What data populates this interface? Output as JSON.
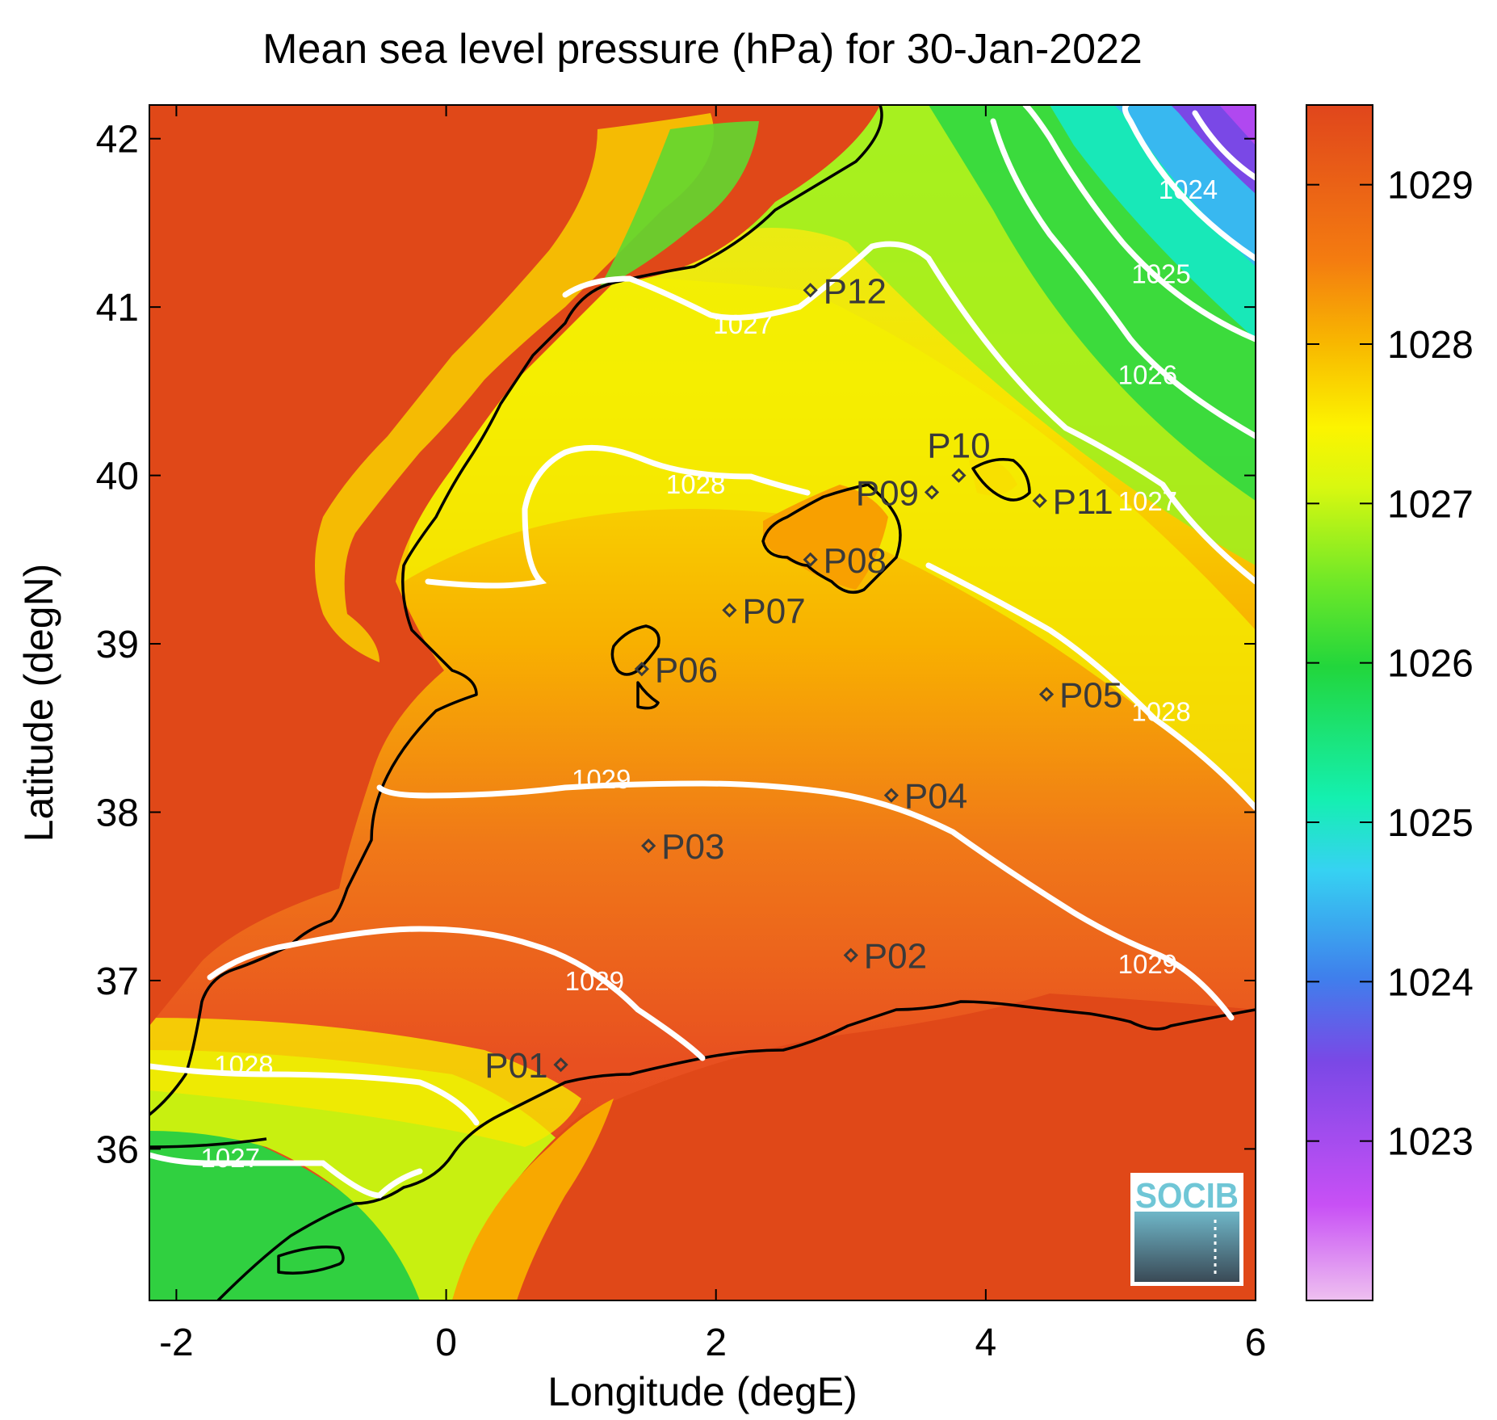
{
  "title": "Mean sea level pressure (hPa) for 30-Jan-2022",
  "xlabel": "Longitude (degE)",
  "ylabel": "Latitude (degN)",
  "x_range": [
    -2.2,
    6.0
  ],
  "y_range": [
    35.1,
    42.2
  ],
  "x_ticks": [
    -2,
    0,
    2,
    4,
    6
  ],
  "y_ticks": [
    36,
    37,
    38,
    39,
    40,
    41,
    42
  ],
  "colorbar": {
    "range": [
      1022.0,
      1029.5
    ],
    "ticks": [
      1023,
      1024,
      1025,
      1026,
      1027,
      1028,
      1029
    ],
    "colormap": [
      "#e8b4e8",
      "#c040f0",
      "#7040e0",
      "#3a78e8",
      "#30d8f0",
      "#10f0b0",
      "#20d040",
      "#80f020",
      "#f8f800",
      "#f8a800",
      "#f06010",
      "#e04818"
    ]
  },
  "contour_labels": [
    {
      "text": "1024",
      "lon": 5.5,
      "lat": 41.7
    },
    {
      "text": "1025",
      "lon": 5.3,
      "lat": 41.2
    },
    {
      "text": "1026",
      "lon": 5.2,
      "lat": 40.6
    },
    {
      "text": "1027",
      "lon": 5.2,
      "lat": 39.85
    },
    {
      "text": "1027",
      "lon": 2.2,
      "lat": 40.9
    },
    {
      "text": "1028",
      "lon": 1.85,
      "lat": 39.95
    },
    {
      "text": "1028",
      "lon": 5.3,
      "lat": 38.6
    },
    {
      "text": "1029",
      "lon": 1.15,
      "lat": 38.2
    },
    {
      "text": "1029",
      "lon": 5.2,
      "lat": 37.1
    },
    {
      "text": "1029",
      "lon": 1.1,
      "lat": 37.0
    },
    {
      "text": "1028",
      "lon": -1.5,
      "lat": 36.5
    },
    {
      "text": "1027",
      "lon": -1.6,
      "lat": 35.95
    }
  ],
  "stations": [
    {
      "name": "P01",
      "lon": 0.85,
      "lat": 36.5,
      "label_side": "left"
    },
    {
      "name": "P02",
      "lon": 3.0,
      "lat": 37.15,
      "label_side": "right"
    },
    {
      "name": "P03",
      "lon": 1.5,
      "lat": 37.8,
      "label_side": "right"
    },
    {
      "name": "P04",
      "lon": 3.3,
      "lat": 38.1,
      "label_side": "right"
    },
    {
      "name": "P05",
      "lon": 4.45,
      "lat": 38.7,
      "label_side": "right"
    },
    {
      "name": "P06",
      "lon": 1.45,
      "lat": 38.85,
      "label_side": "right"
    },
    {
      "name": "P07",
      "lon": 2.1,
      "lat": 39.2,
      "label_side": "right"
    },
    {
      "name": "P08",
      "lon": 2.7,
      "lat": 39.5,
      "label_side": "right"
    },
    {
      "name": "P09",
      "lon": 3.6,
      "lat": 39.9,
      "label_side": "left"
    },
    {
      "name": "P10",
      "lon": 3.8,
      "lat": 40.0,
      "label_side": "above"
    },
    {
      "name": "P11",
      "lon": 4.4,
      "lat": 39.85,
      "label_side": "right"
    },
    {
      "name": "P12",
      "lon": 2.7,
      "lat": 41.1,
      "label_side": "right"
    }
  ],
  "logo": {
    "text": "SOCIB"
  }
}
